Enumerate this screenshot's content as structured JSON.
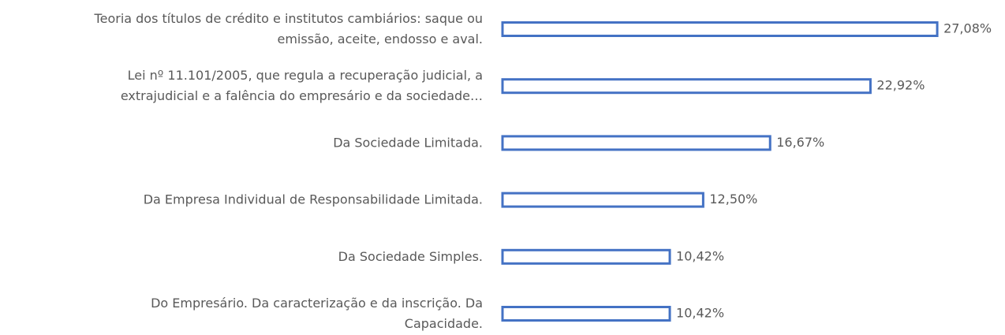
{
  "chart_data": {
    "type": "hbar",
    "categories": [
      "Teoria dos títulos de crédito e institutos cambiários: saque ou\nemissão, aceite, endosso e aval.",
      "Lei nº 11.101/2005, que regula a recuperação judicial, a\nextrajudicial e a falência do empresário e da sociedade…",
      "Da Sociedade Limitada.",
      "Da Empresa Individual de Responsabilidade Limitada.",
      "Da Sociedade Simples.",
      "Do Empresário. Da caracterização e da inscrição. Da\nCapacidade."
    ],
    "values": [
      27.08,
      22.92,
      16.67,
      12.5,
      10.42,
      10.42
    ],
    "value_labels": [
      "27,08%",
      "22,92%",
      "16,67%",
      "12,50%",
      "10,42%",
      "10,42%"
    ],
    "color": "#4472c4"
  }
}
